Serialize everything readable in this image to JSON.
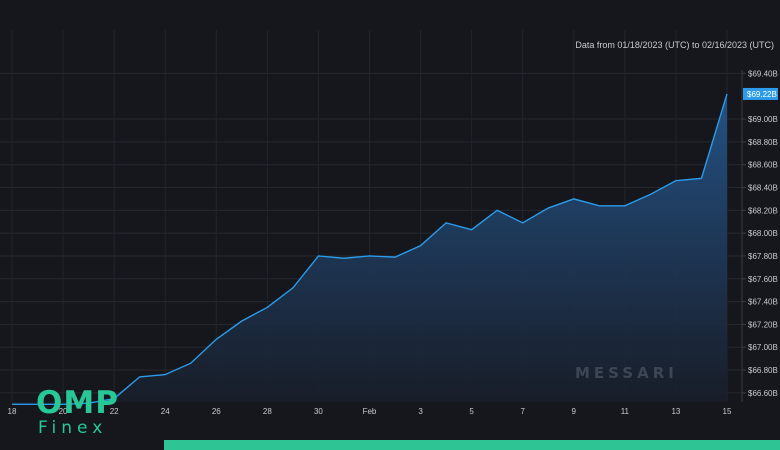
{
  "date_range_text": "Data from 01/18/2023 (UTC) to 02/16/2023 (UTC)",
  "watermark": "MESSARI",
  "logo": {
    "line1": "OMP",
    "line2": "Finex"
  },
  "colors": {
    "background": "#16171d",
    "line": "#2b9bea",
    "area_top": "#24558a",
    "area_bottom": "#181d28",
    "brand": "#27c796",
    "last_value_badge": "#2b9bea"
  },
  "chart_data": {
    "type": "area",
    "title": "",
    "xlabel": "",
    "ylabel": "",
    "x": [
      "Jan 18",
      "Jan 19",
      "Jan 20",
      "Jan 21",
      "Jan 22",
      "Jan 23",
      "Jan 24",
      "Jan 25",
      "Jan 26",
      "Jan 27",
      "Jan 28",
      "Jan 29",
      "Jan 30",
      "Jan 31",
      "Feb 1",
      "Feb 2",
      "Feb 3",
      "Feb 4",
      "Feb 5",
      "Feb 6",
      "Feb 7",
      "Feb 8",
      "Feb 9",
      "Feb 10",
      "Feb 11",
      "Feb 12",
      "Feb 13",
      "Feb 14",
      "Feb 15"
    ],
    "series": [
      {
        "values": [
          66.5,
          66.5,
          66.5,
          66.51,
          66.55,
          66.74,
          66.76,
          66.86,
          67.07,
          67.23,
          67.35,
          67.52,
          67.8,
          67.78,
          67.8,
          67.79,
          67.89,
          68.09,
          68.03,
          68.2,
          68.09,
          68.22,
          68.3,
          68.24,
          68.24,
          68.34,
          68.46,
          68.48,
          69.22
        ]
      }
    ],
    "x_tick_labels": [
      "18",
      "20",
      "22",
      "24",
      "26",
      "28",
      "30",
      "Feb",
      "3",
      "5",
      "7",
      "9",
      "11",
      "13",
      "15"
    ],
    "x_tick_indices": [
      0,
      2,
      4,
      6,
      8,
      10,
      12,
      14,
      16,
      18,
      20,
      22,
      24,
      26,
      28
    ],
    "y_tick_labels": [
      "$66.60B",
      "$66.80B",
      "$67.00B",
      "$67.20B",
      "$67.40B",
      "$67.60B",
      "$67.80B",
      "$68.00B",
      "$68.20B",
      "$68.40B",
      "$68.60B",
      "$68.80B",
      "$69.00B",
      "$69.22B",
      "$69.40B"
    ],
    "y_tick_values": [
      66.6,
      66.8,
      67.0,
      67.2,
      67.4,
      67.6,
      67.8,
      68.0,
      68.2,
      68.4,
      68.6,
      68.8,
      69.0,
      69.22,
      69.4
    ],
    "last_value_label": "$69.22B",
    "ylim": [
      66.52,
      69.43
    ],
    "grid": true,
    "legend": "none"
  }
}
